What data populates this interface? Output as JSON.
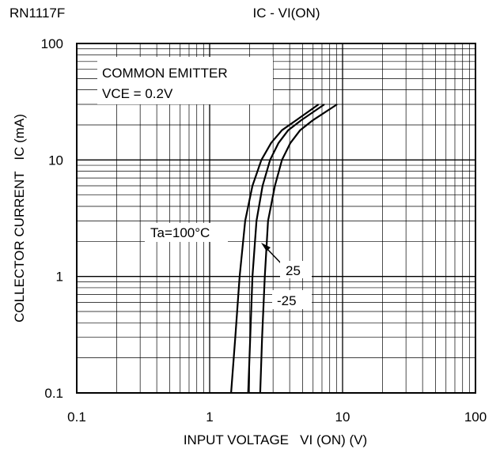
{
  "chart_data": {
    "type": "line",
    "part_number": "RN1117F",
    "title": "IC - VI(ON)",
    "xlabel": "INPUT VOLTAGE   VI (ON) (V)",
    "ylabel": "COLLECTOR CURRENT   IC (mA)",
    "x_scale": "log",
    "y_scale": "log",
    "xlim": [
      0.1,
      100
    ],
    "ylim": [
      0.1,
      100
    ],
    "x_ticks": [
      0.1,
      1,
      10,
      100
    ],
    "x_tick_labels": [
      "0.1",
      "1",
      "10",
      "100"
    ],
    "y_ticks": [
      0.1,
      1,
      10,
      100
    ],
    "y_tick_labels": [
      "0.1",
      "1",
      "10",
      "100"
    ],
    "grid": true,
    "condition_lines": [
      "COMMON EMITTER",
      "VCE = 0.2V"
    ],
    "series": [
      {
        "name": "Ta=100°C",
        "x": [
          1.45,
          1.56,
          1.68,
          1.85,
          2.1,
          2.45,
          2.9,
          3.5,
          4.5,
          6.6
        ],
        "y": [
          0.1,
          0.3,
          1,
          3,
          6,
          10,
          14,
          18,
          22,
          30
        ]
      },
      {
        "name": "25",
        "x": [
          1.95,
          2.02,
          2.1,
          2.25,
          2.5,
          2.85,
          3.3,
          3.9,
          4.9,
          7.3
        ],
        "y": [
          0.1,
          0.3,
          1,
          3,
          6,
          10,
          14,
          18,
          22,
          30
        ]
      },
      {
        "name": "-25",
        "x": [
          2.4,
          2.48,
          2.6,
          2.75,
          3.1,
          3.5,
          4.05,
          4.8,
          6.0,
          9.1
        ],
        "y": [
          0.1,
          0.3,
          1,
          3,
          6,
          10,
          14,
          18,
          22,
          30
        ]
      }
    ]
  }
}
